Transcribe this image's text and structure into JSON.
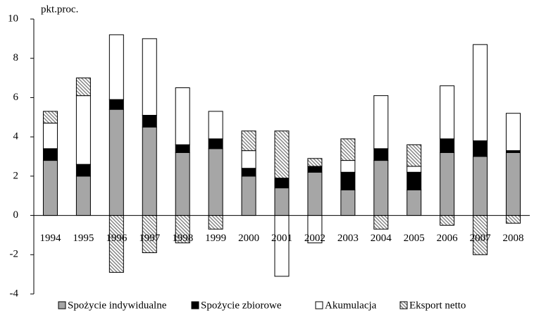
{
  "chart_data": {
    "type": "stacked-bar",
    "y_label": "pkt.proc.",
    "categories": [
      "1994",
      "1995",
      "1996",
      "1997",
      "1998",
      "1999",
      "2000",
      "2001",
      "2002",
      "2003",
      "2004",
      "2005",
      "2006",
      "2007",
      "2008"
    ],
    "series": [
      {
        "name": "Spożycie indywidualne",
        "color": "#a6a6a6",
        "values": [
          2.8,
          2.0,
          5.4,
          4.5,
          3.2,
          3.4,
          2.0,
          1.4,
          2.2,
          1.3,
          2.8,
          1.3,
          3.2,
          3.0,
          3.2
        ]
      },
      {
        "name": "Spożycie zbiorowe",
        "color": "#000000",
        "values": [
          0.6,
          0.6,
          0.5,
          0.6,
          0.4,
          0.5,
          0.4,
          0.5,
          0.3,
          0.9,
          0.6,
          0.9,
          0.7,
          0.8,
          0.1
        ]
      },
      {
        "name": "Akumulacja",
        "color": "#ffffff",
        "values": [
          1.3,
          3.5,
          3.3,
          3.9,
          2.9,
          1.4,
          0.9,
          -3.1,
          -1.4,
          0.6,
          2.7,
          0.3,
          2.7,
          4.9,
          1.9
        ]
      },
      {
        "name": "Eksport netto",
        "color": "#808080",
        "values": [
          0.6,
          0.9,
          -2.9,
          -1.9,
          -1.4,
          -0.7,
          1.0,
          2.4,
          0.4,
          1.1,
          -0.7,
          1.1,
          -0.5,
          -2.0,
          -0.4
        ]
      }
    ],
    "ylim": [
      -4,
      10
    ],
    "yticks": [
      -4,
      -2,
      0,
      2,
      4,
      6,
      8,
      10
    ]
  }
}
